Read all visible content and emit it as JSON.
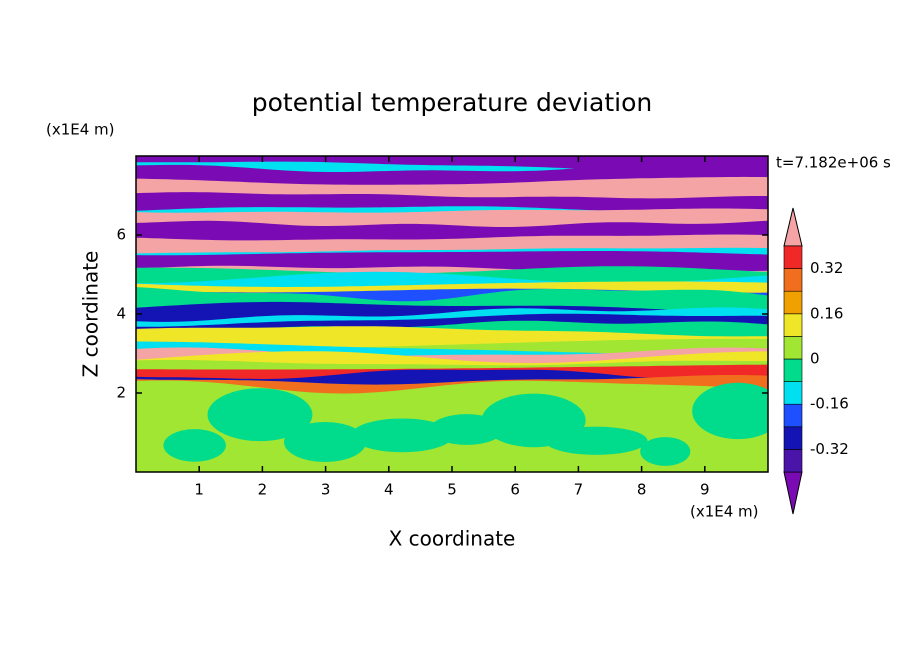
{
  "chart_data": {
    "type": "contour",
    "title": "potential temperature deviation",
    "x_label": "X coordinate",
    "y_label": "Z coordinate",
    "x_unit": "(x1E4 m)",
    "y_unit": "(x1E4 m)",
    "time_label": "t=7.182e+06 s",
    "xlim": [
      0,
      10
    ],
    "xticks": [
      1,
      2,
      3,
      4,
      5,
      6,
      7,
      8,
      9
    ],
    "ylim": [
      0,
      8
    ],
    "yticks": [
      2,
      4,
      6
    ],
    "levels": [
      -0.4,
      -0.32,
      -0.24,
      -0.16,
      -0.08,
      0,
      0.08,
      0.16,
      0.24,
      0.32,
      0.4
    ],
    "colors": [
      "#7a0ab4",
      "#4a14a8",
      "#1414b4",
      "#1e50ff",
      "#00e0f0",
      "#00dc8c",
      "#a0e632",
      "#f0e628",
      "#f0a000",
      "#f06e1e",
      "#f02828",
      "#f4a4a4"
    ],
    "colorbar_ticks": [
      -0.32,
      -0.16,
      0,
      0.16,
      0.32
    ]
  }
}
